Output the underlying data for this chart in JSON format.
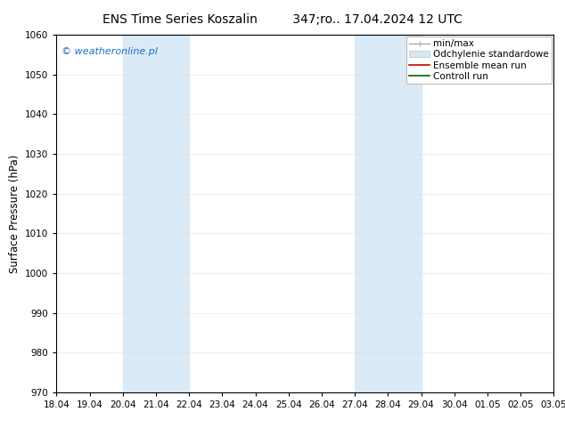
{
  "title_left": "ENS Time Series Koszalin",
  "title_right": "347;ro.. 17.04.2024 12 UTC",
  "ylabel": "Surface Pressure (hPa)",
  "ylim": [
    970,
    1060
  ],
  "yticks": [
    970,
    980,
    990,
    1000,
    1010,
    1020,
    1030,
    1040,
    1050,
    1060
  ],
  "xlim_start": 0,
  "xlim_end": 15,
  "xtick_labels": [
    "18.04",
    "19.04",
    "20.04",
    "21.04",
    "22.04",
    "23.04",
    "24.04",
    "25.04",
    "26.04",
    "27.04",
    "28.04",
    "29.04",
    "30.04",
    "01.05",
    "02.05",
    "03.05"
  ],
  "shaded_regions": [
    {
      "x_start": 2,
      "x_end": 4,
      "color": "#daeaf7"
    },
    {
      "x_start": 9,
      "x_end": 11,
      "color": "#daeaf7"
    }
  ],
  "watermark": "© weatheronline.pl",
  "watermark_color": "#1a6fcc",
  "background_color": "#ffffff",
  "grid_color": "#cccccc",
  "title_fontsize": 10,
  "tick_fontsize": 7.5,
  "ylabel_fontsize": 8.5,
  "legend_fontsize": 7.5
}
